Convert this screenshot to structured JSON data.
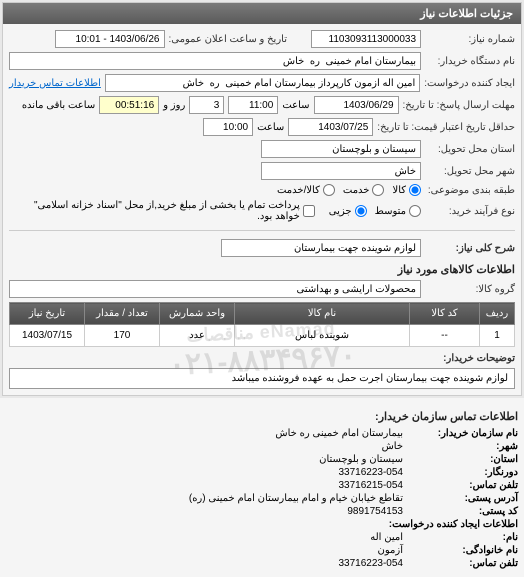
{
  "header": {
    "title": "جزئیات اطلاعات نیاز"
  },
  "fields": {
    "need_number": {
      "label": "شماره نیاز:",
      "value": "1103093113000033"
    },
    "announce_datetime": {
      "label": "تاریخ و ساعت اعلان عمومی:",
      "value": "1403/06/26 - 10:01"
    },
    "buyer_org": {
      "label": "نام دستگاه خریدار:",
      "value": "بیمارستان امام خمینی  ره  خاش"
    },
    "request_creator": {
      "label": "ایجاد کننده درخواست:",
      "value": "امین اله آزمون کارپرداز بیمارستان امام خمینی  ره  خاش"
    },
    "buyer_contact_link": "اطلاعات تماس خریدار",
    "response_deadline": {
      "label": "مهلت ارسال پاسخ: تا تاریخ:",
      "date": "1403/06/29",
      "time_label": "ساعت",
      "time": "11:00",
      "day_count": "3",
      "day_label": "روز و",
      "remaining": "00:51:16",
      "remaining_label": "ساعت باقی مانده"
    },
    "validity_deadline": {
      "label": "حداقل تاریخ اعتبار قیمت: تا تاریخ:",
      "date": "1403/07/25",
      "time_label": "ساعت",
      "time": "10:00"
    },
    "province": {
      "label": "استان محل تحویل:",
      "value": "سیستان و بلوچستان"
    },
    "city": {
      "label": "شهر محل تحویل:",
      "value": "خاش"
    },
    "category": {
      "label": "طبقه بندی موضوعی:",
      "options": {
        "goods": "کالا",
        "service": "خدمت",
        "goods_service": "کالا/خدمت"
      },
      "selected": "goods"
    },
    "process_type": {
      "label": "نوع فرآیند خرید:",
      "options": {
        "medium": "متوسط",
        "partial": "جزیی"
      },
      "selected": "partial",
      "checkbox_label": "پرداخت تمام یا بخشی از مبلغ خرید,از محل \"اسناد خزانه اسلامی\" خواهد بود."
    }
  },
  "need_summary": {
    "label": "شرح کلی نیاز:",
    "value": "لوازم شوینده جهت بیمارستان"
  },
  "goods_section": {
    "title": "اطلاعات کالاهای مورد نیاز",
    "group_label": "گروه کالا:",
    "group_value": "محصولات آرایشی و بهداشتی"
  },
  "table": {
    "columns": [
      "ردیف",
      "کد کالا",
      "نام کالا",
      "واحد شمارش",
      "تعداد / مقدار",
      "تاریخ نیاز"
    ],
    "rows": [
      [
        "1",
        "--",
        "شوینده لباس",
        "عدد",
        "170",
        "1403/07/15"
      ]
    ]
  },
  "buyer_notes": {
    "label": "توضیحات خریدار:",
    "value": "لوازم شوینده جهت بیمارستان اجرت حمل به عهده فروشنده میباشد"
  },
  "watermark": "eNamad مناقصات",
  "contact": {
    "title": "اطلاعات تماس سازمان خریدار:",
    "rows": [
      {
        "label": "نام سازمان خریدار:",
        "value": "بیمارستان امام خمینی ره خاش"
      },
      {
        "label": "شهر:",
        "value": "خاش"
      },
      {
        "label": "استان:",
        "value": "سیستان و بلوچستان"
      },
      {
        "label": "دورنگار:",
        "value": "33716223-054"
      },
      {
        "label": "تلفن تماس:",
        "value": "33716215-054"
      },
      {
        "label": "آدرس پستی:",
        "value": "تقاطع خیابان خیام و امام بیمارستان امام خمینی (ره)"
      },
      {
        "label": "کد پستی:",
        "value": "9891754153"
      },
      {
        "label": "اطلاعات ایجاد کننده درخواست:",
        "value": ""
      },
      {
        "label": "نام:",
        "value": "امین اله"
      },
      {
        "label": "نام خانوادگی:",
        "value": "آزمون"
      },
      {
        "label": "تلفن تماس:",
        "value": "33716223-054"
      }
    ]
  }
}
